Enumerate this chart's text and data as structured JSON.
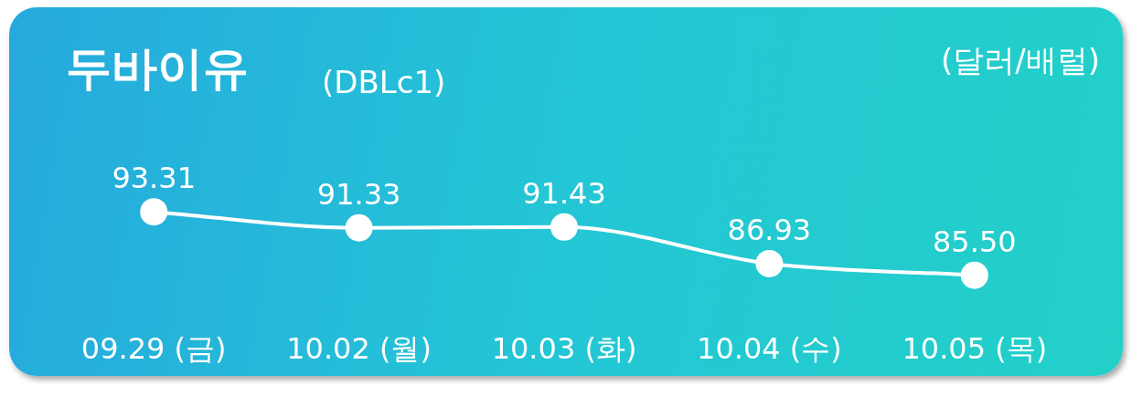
{
  "chart_data": {
    "type": "line",
    "title": "두바이유",
    "subtitle": "(DBLc1)",
    "ylabel": "(달러/배럴)",
    "categories": [
      "09.29 (금)",
      "10.02 (월)",
      "10.03 (화)",
      "10.04 (수)",
      "10.05 (목)"
    ],
    "series": [
      {
        "color": "#ffffff",
        "values": [
          93.31,
          91.33,
          91.43,
          86.93,
          85.5
        ],
        "value_labels": [
          "93.31",
          "91.33",
          "91.43",
          "86.93",
          "85.50"
        ]
      }
    ],
    "marker": "circle",
    "line_style": "solid",
    "grid": false,
    "legend": false
  }
}
